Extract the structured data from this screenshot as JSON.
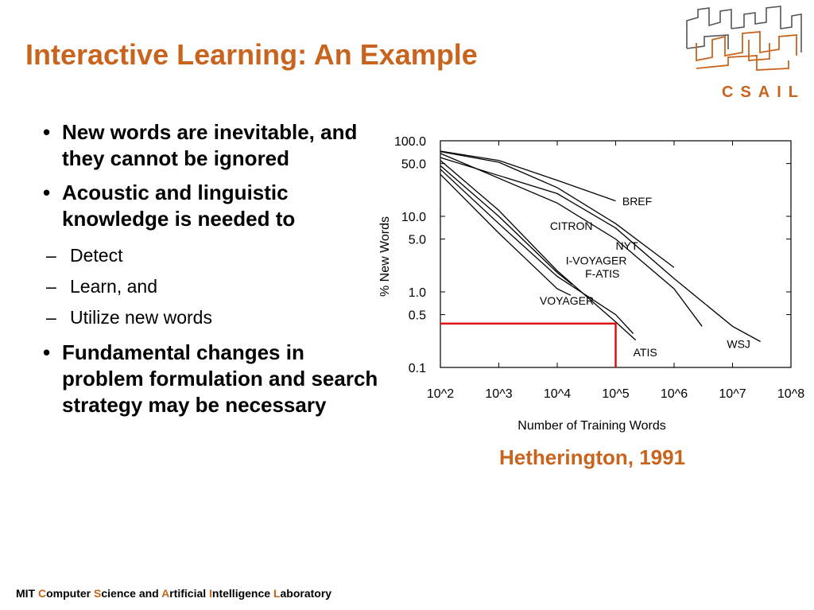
{
  "slide": {
    "title": "Interactive Learning: An Example",
    "logo_text": "CSAIL",
    "citation": "Hetherington, 1991",
    "footer": [
      {
        "text": "MIT ",
        "hl": false
      },
      {
        "text": "C",
        "hl": true
      },
      {
        "text": "omputer ",
        "hl": false
      },
      {
        "text": "S",
        "hl": true
      },
      {
        "text": "cience and ",
        "hl": false
      },
      {
        "text": "A",
        "hl": true
      },
      {
        "text": "rtificial ",
        "hl": false
      },
      {
        "text": "I",
        "hl": true
      },
      {
        "text": "ntelligence ",
        "hl": false
      },
      {
        "text": "L",
        "hl": true
      },
      {
        "text": "aboratory",
        "hl": false
      }
    ],
    "bullets": [
      {
        "text": "New words are inevitable, and they cannot be ignored",
        "subs": []
      },
      {
        "text": "Acoustic and linguistic knowledge is needed to",
        "subs": [
          "Detect",
          "Learn, and",
          "Utilize new words"
        ]
      },
      {
        "text": "Fundamental changes in problem formulation and search strategy may be necessary",
        "subs": []
      }
    ],
    "colors": {
      "accent": "#c8641e",
      "highlight_line": "#dd1111"
    }
  },
  "chart_data": {
    "type": "line",
    "xlabel": "Number of Training Words",
    "ylabel": "% New Words",
    "x_scale": "log",
    "y_scale": "log",
    "xlim": [
      100,
      100000000
    ],
    "ylim": [
      0.1,
      100
    ],
    "x_ticks": [
      100,
      1000,
      10000,
      100000,
      1000000,
      10000000,
      100000000
    ],
    "x_tick_labels": [
      "10^2",
      "10^3",
      "10^4",
      "10^5",
      "10^6",
      "10^7",
      "10^8"
    ],
    "y_ticks": [
      100,
      50,
      10,
      5,
      1,
      0.5,
      0.1
    ],
    "y_tick_labels": [
      "100.0",
      "50.0",
      "10.0",
      "5.0",
      "1.0",
      "0.5",
      "0.1"
    ],
    "grid": false,
    "series": [
      {
        "name": "BREF",
        "points": [
          [
            100,
            73
          ],
          [
            1000,
            55
          ],
          [
            10000,
            30
          ],
          [
            100000,
            16
          ]
        ],
        "label_at": [
          130000,
          14
        ]
      },
      {
        "name": "CITRON",
        "points": [
          [
            100,
            72
          ],
          [
            1000,
            52
          ],
          [
            10000,
            24
          ],
          [
            100000,
            8
          ],
          [
            1000000,
            2.1
          ]
        ],
        "label_at": [
          7500,
          6.6
        ]
      },
      {
        "name": "NYT",
        "points": [
          [
            100,
            68
          ],
          [
            10000,
            15
          ],
          [
            100000,
            5
          ],
          [
            1000000,
            1.1
          ],
          [
            3000000,
            0.35
          ]
        ],
        "label_at": [
          100000,
          3.6
        ]
      },
      {
        "name": "I-VOYAGER",
        "points": [
          [
            100,
            47
          ],
          [
            1000,
            10
          ],
          [
            10000,
            1.8
          ],
          [
            18000,
            1.25
          ]
        ],
        "label_at": [
          14000,
          2.3
        ]
      },
      {
        "name": "F-ATIS",
        "points": [
          [
            100,
            42
          ],
          [
            1000,
            8
          ],
          [
            10000,
            1.6
          ],
          [
            100000,
            0.5
          ],
          [
            200000,
            0.28
          ]
        ],
        "label_at": [
          30000,
          1.55
        ]
      },
      {
        "name": "VOYAGER",
        "points": [
          [
            100,
            36
          ],
          [
            1000,
            6
          ],
          [
            10000,
            1.1
          ],
          [
            17000,
            0.9
          ]
        ],
        "label_at": [
          5000,
          0.68
        ]
      },
      {
        "name": "ATIS",
        "points": [
          [
            100,
            55
          ],
          [
            1000,
            12
          ],
          [
            10000,
            1.9
          ],
          [
            100000,
            0.4
          ],
          [
            220000,
            0.23
          ]
        ],
        "label_at": [
          200000,
          0.14
        ]
      },
      {
        "name": "WSJ",
        "points": [
          [
            100,
            60
          ],
          [
            10000,
            20
          ],
          [
            100000,
            7
          ],
          [
            1000000,
            1.5
          ],
          [
            10000000,
            0.35
          ],
          [
            30000000,
            0.22
          ]
        ],
        "label_at": [
          8000000,
          0.18
        ]
      }
    ],
    "highlight": {
      "x": 100000,
      "y": 0.38
    }
  }
}
